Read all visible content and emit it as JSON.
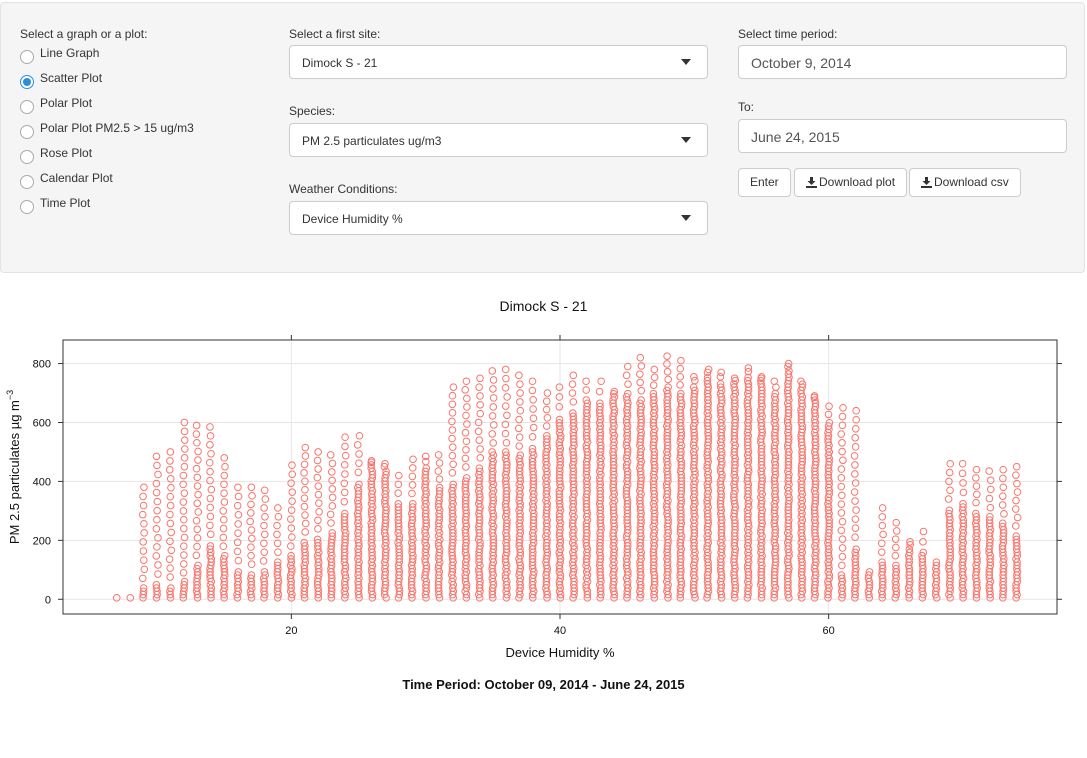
{
  "controls": {
    "graph_label": "Select a graph or a plot:",
    "graph_options": [
      "Line Graph",
      "Scatter Plot",
      "Polar Plot",
      "Polar Plot PM2.5 > 15 ug/m3",
      "Rose Plot",
      "Calendar Plot",
      "Time Plot"
    ],
    "graph_selected": "Scatter Plot",
    "site_label": "Select a first site:",
    "site_value": "Dimock S - 21",
    "species_label": "Species:",
    "species_value": "PM 2.5 particulates ug/m3",
    "weather_label": "Weather Conditions:",
    "weather_value": "Device Humidity %",
    "period_label": "Select time period:",
    "period_from": "October 9, 2014",
    "to_label": "To:",
    "period_to": "June 24, 2015",
    "enter_label": "Enter",
    "download_plot_label": "Download plot",
    "download_csv_label": "Download csv",
    "download_icon": "download-icon"
  },
  "plot": {
    "title": "Dimock S  -  21",
    "time_period": "Time Period:  October 09, 2014  -  June 24, 2015"
  },
  "chart_data": {
    "type": "scatter",
    "title": "Dimock S  -  21",
    "xlabel": "Device Humidity %",
    "ylabel": "PM 2.5 particulates µg m",
    "ylabel_superscript": "−3",
    "x_ticks": [
      20,
      40,
      60
    ],
    "y_ticks": [
      0,
      200,
      400,
      600,
      800
    ],
    "xlim": [
      3,
      77
    ],
    "ylim": [
      -50,
      880
    ],
    "grid": true,
    "marker_color": "#f8766d",
    "marker": "open-circle",
    "columns": [
      {
        "x": 7,
        "dense_max": 10,
        "sparse_max": 10
      },
      {
        "x": 8,
        "dense_max": 15,
        "sparse_max": 15
      },
      {
        "x": 9,
        "dense_max": 40,
        "sparse_max": 380
      },
      {
        "x": 10,
        "dense_max": 55,
        "sparse_max": 485
      },
      {
        "x": 11,
        "dense_max": 45,
        "sparse_max": 500
      },
      {
        "x": 12,
        "dense_max": 60,
        "sparse_max": 600
      },
      {
        "x": 13,
        "dense_max": 120,
        "sparse_max": 590
      },
      {
        "x": 14,
        "dense_max": 190,
        "sparse_max": 585
      },
      {
        "x": 15,
        "dense_max": 150,
        "sparse_max": 480
      },
      {
        "x": 16,
        "dense_max": 100,
        "sparse_max": 380
      },
      {
        "x": 17,
        "dense_max": 90,
        "sparse_max": 380
      },
      {
        "x": 18,
        "dense_max": 100,
        "sparse_max": 370
      },
      {
        "x": 19,
        "dense_max": 130,
        "sparse_max": 310
      },
      {
        "x": 20,
        "dense_max": 150,
        "sparse_max": 455
      },
      {
        "x": 21,
        "dense_max": 200,
        "sparse_max": 515
      },
      {
        "x": 22,
        "dense_max": 210,
        "sparse_max": 500
      },
      {
        "x": 23,
        "dense_max": 230,
        "sparse_max": 490
      },
      {
        "x": 24,
        "dense_max": 300,
        "sparse_max": 550
      },
      {
        "x": 25,
        "dense_max": 400,
        "sparse_max": 555
      },
      {
        "x": 26,
        "dense_max": 460,
        "sparse_max": 470
      },
      {
        "x": 27,
        "dense_max": 440,
        "sparse_max": 460
      },
      {
        "x": 28,
        "dense_max": 330,
        "sparse_max": 420
      },
      {
        "x": 29,
        "dense_max": 330,
        "sparse_max": 475
      },
      {
        "x": 30,
        "dense_max": 450,
        "sparse_max": 485
      },
      {
        "x": 31,
        "dense_max": 380,
        "sparse_max": 490
      },
      {
        "x": 32,
        "dense_max": 400,
        "sparse_max": 720
      },
      {
        "x": 33,
        "dense_max": 420,
        "sparse_max": 740
      },
      {
        "x": 34,
        "dense_max": 450,
        "sparse_max": 750
      },
      {
        "x": 35,
        "dense_max": 500,
        "sparse_max": 775
      },
      {
        "x": 36,
        "dense_max": 500,
        "sparse_max": 780
      },
      {
        "x": 37,
        "dense_max": 490,
        "sparse_max": 760
      },
      {
        "x": 38,
        "dense_max": 520,
        "sparse_max": 740
      },
      {
        "x": 39,
        "dense_max": 560,
        "sparse_max": 700
      },
      {
        "x": 40,
        "dense_max": 620,
        "sparse_max": 720
      },
      {
        "x": 41,
        "dense_max": 640,
        "sparse_max": 760
      },
      {
        "x": 42,
        "dense_max": 680,
        "sparse_max": 740
      },
      {
        "x": 43,
        "dense_max": 670,
        "sparse_max": 740
      },
      {
        "x": 44,
        "dense_max": 690,
        "sparse_max": 705
      },
      {
        "x": 45,
        "dense_max": 700,
        "sparse_max": 790
      },
      {
        "x": 46,
        "dense_max": 680,
        "sparse_max": 820
      },
      {
        "x": 47,
        "dense_max": 700,
        "sparse_max": 780
      },
      {
        "x": 48,
        "dense_max": 720,
        "sparse_max": 825
      },
      {
        "x": 49,
        "dense_max": 700,
        "sparse_max": 810
      },
      {
        "x": 50,
        "dense_max": 730,
        "sparse_max": 755
      },
      {
        "x": 51,
        "dense_max": 760,
        "sparse_max": 780
      },
      {
        "x": 52,
        "dense_max": 740,
        "sparse_max": 770
      },
      {
        "x": 53,
        "dense_max": 735,
        "sparse_max": 750
      },
      {
        "x": 54,
        "dense_max": 760,
        "sparse_max": 785
      },
      {
        "x": 55,
        "dense_max": 745,
        "sparse_max": 755
      },
      {
        "x": 56,
        "dense_max": 700,
        "sparse_max": 740
      },
      {
        "x": 57,
        "dense_max": 780,
        "sparse_max": 800
      },
      {
        "x": 58,
        "dense_max": 720,
        "sparse_max": 740
      },
      {
        "x": 59,
        "dense_max": 680,
        "sparse_max": 690
      },
      {
        "x": 60,
        "dense_max": 600,
        "sparse_max": 655
      },
      {
        "x": 61,
        "dense_max": 85,
        "sparse_max": 650
      },
      {
        "x": 62,
        "dense_max": 180,
        "sparse_max": 640
      },
      {
        "x": 63,
        "dense_max": 100,
        "sparse_max": 100
      },
      {
        "x": 64,
        "dense_max": 130,
        "sparse_max": 310
      },
      {
        "x": 65,
        "dense_max": 120,
        "sparse_max": 260
      },
      {
        "x": 66,
        "dense_max": 175,
        "sparse_max": 195
      },
      {
        "x": 67,
        "dense_max": 160,
        "sparse_max": 230
      },
      {
        "x": 68,
        "dense_max": 130,
        "sparse_max": 130
      },
      {
        "x": 69,
        "dense_max": 310,
        "sparse_max": 460
      },
      {
        "x": 70,
        "dense_max": 330,
        "sparse_max": 460
      },
      {
        "x": 71,
        "dense_max": 300,
        "sparse_max": 440
      },
      {
        "x": 72,
        "dense_max": 280,
        "sparse_max": 435
      },
      {
        "x": 73,
        "dense_max": 260,
        "sparse_max": 440
      },
      {
        "x": 74,
        "dense_max": 220,
        "sparse_max": 450
      }
    ]
  }
}
